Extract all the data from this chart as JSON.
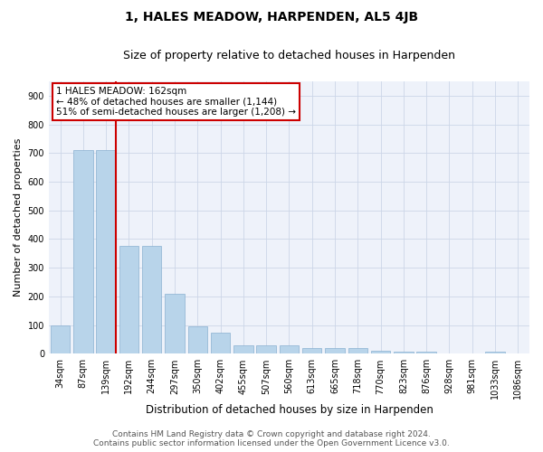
{
  "title": "1, HALES MEADOW, HARPENDEN, AL5 4JB",
  "subtitle": "Size of property relative to detached houses in Harpenden",
  "xlabel": "Distribution of detached houses by size in Harpenden",
  "ylabel": "Number of detached properties",
  "footer_line1": "Contains HM Land Registry data © Crown copyright and database right 2024.",
  "footer_line2": "Contains public sector information licensed under the Open Government Licence v3.0.",
  "categories": [
    "34sqm",
    "87sqm",
    "139sqm",
    "192sqm",
    "244sqm",
    "297sqm",
    "350sqm",
    "402sqm",
    "455sqm",
    "507sqm",
    "560sqm",
    "613sqm",
    "665sqm",
    "718sqm",
    "770sqm",
    "823sqm",
    "876sqm",
    "928sqm",
    "981sqm",
    "1033sqm",
    "1086sqm"
  ],
  "values": [
    100,
    710,
    710,
    375,
    375,
    210,
    95,
    75,
    30,
    30,
    30,
    20,
    20,
    20,
    10,
    8,
    8,
    0,
    0,
    8,
    0
  ],
  "bar_color": "#b8d4ea",
  "bar_edge_color": "#8ab0d0",
  "vline_color": "#cc0000",
  "vline_index": 2,
  "annotation_line1": "1 HALES MEADOW: 162sqm",
  "annotation_line2": "← 48% of detached houses are smaller (1,144)",
  "annotation_line3": "51% of semi-detached houses are larger (1,208) →",
  "annotation_box_color": "#cc0000",
  "ylim": [
    0,
    950
  ],
  "yticks": [
    0,
    100,
    200,
    300,
    400,
    500,
    600,
    700,
    800,
    900
  ],
  "grid_color": "#ccd6e8",
  "background_color": "#eef2fa",
  "title_fontsize": 10,
  "subtitle_fontsize": 9,
  "xlabel_fontsize": 8.5,
  "ylabel_fontsize": 8,
  "tick_fontsize": 7,
  "annotation_fontsize": 7.5,
  "footer_fontsize": 6.5
}
